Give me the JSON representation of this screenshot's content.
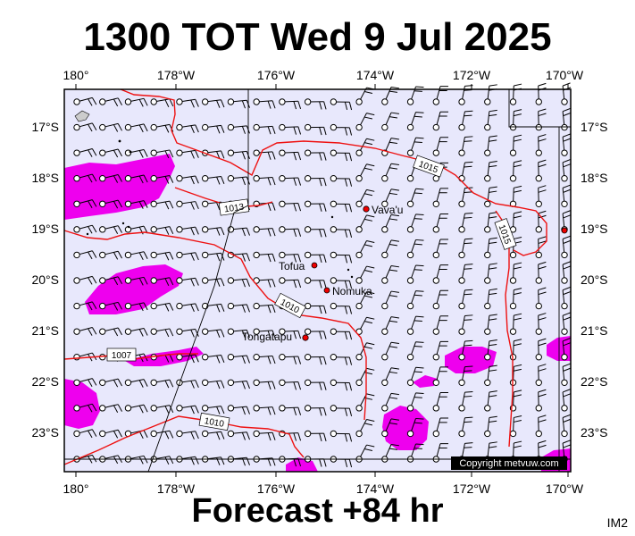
{
  "title": "1300 TOT Wed 9 Jul 2025",
  "footer": "Forecast +84 hr",
  "code": "IM2",
  "copyright": "Copyright metvuw.com",
  "map": {
    "lon_range": [
      180,
      169.8
    ],
    "lat_range": [
      -16.5,
      -23.8
    ],
    "lon_ticks": [
      "180°",
      "178°W",
      "176°W",
      "174°W",
      "172°W",
      "170°W"
    ],
    "lat_ticks": [
      "17°S",
      "18°S",
      "19°S",
      "20°S",
      "21°S",
      "22°S",
      "23°S"
    ],
    "isobars": [
      "1015",
      "1015",
      "1013",
      "1010",
      "1010",
      "1007"
    ],
    "places": [
      {
        "name": "Vava'u",
        "lon": -174.0,
        "lat": -18.65
      },
      {
        "name": "Tofua",
        "lon": -175.05,
        "lat": -19.75
      },
      {
        "name": "Nomuka",
        "lon": -174.8,
        "lat": -20.25
      },
      {
        "name": "Tongatapu",
        "lon": -175.2,
        "lat": -21.15
      }
    ],
    "colors": {
      "sea": "#e8e8fc",
      "isobar": "#ee1111",
      "rain": "#ee00ee",
      "wind": "#000000"
    }
  }
}
